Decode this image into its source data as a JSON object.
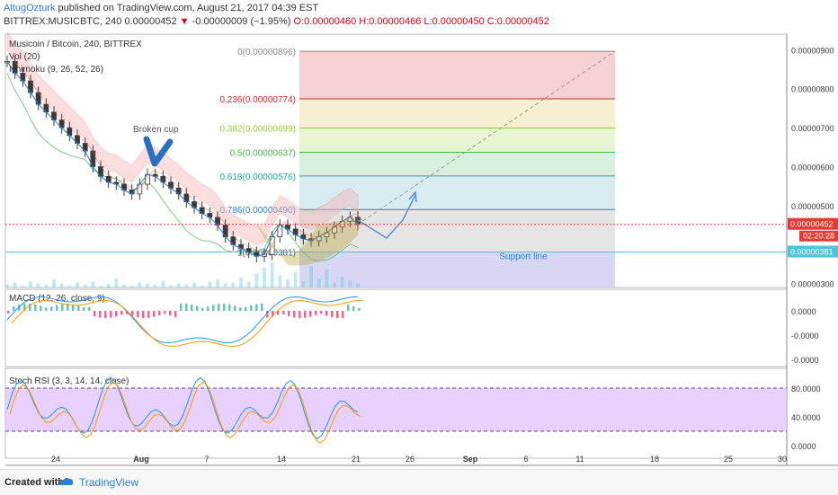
{
  "header": {
    "author": "AltugOzturk",
    "published": "published on TradingView.com, August 21, 2017 04:39 EST",
    "symbol": "BITTREX:MUSICBTC, 240",
    "price": "0.00000452",
    "change": "-0.00000009 (−1.95%)",
    "ohlc": "O:0.00000460 H:0.00000466 L:0.00000450 C:0.00000452"
  },
  "footer": {
    "created_with": "Created with",
    "brand": "TradingView"
  },
  "colors": {
    "up": "#26a69a",
    "down": "#ef5350",
    "candle": "#3a3a3a",
    "blue_line": "#2a7fd0",
    "macd": "#2196f3",
    "signal": "#ff9800",
    "stoch_bg": "#e3c6ff"
  },
  "chart_data": [
    {
      "type": "line",
      "pane": "price",
      "title": "Musicoin / Bitcoin, 240, BITTREX",
      "indicators": [
        "Vol (20)",
        "Ichimoku (9, 26, 52, 26)"
      ],
      "x_ticks": [
        "24",
        "Aug",
        "7",
        "14",
        "21",
        "26",
        "Sep",
        "6",
        "11",
        "18",
        "25",
        "30"
      ],
      "y_ticks": [
        "0.00000900",
        "0.00000800",
        "0.00000700",
        "0.00000600",
        "0.00000500",
        "0.00000300"
      ],
      "last_price_label": "0.00000452",
      "countdown_label": "02:20:28",
      "support_price_label": "0.00000381",
      "ylim": [
        2.9e-06,
        9.4e-06
      ],
      "series": [
        {
          "values": [
            8.7e-06,
            8.4e-06,
            8.2e-06,
            7.9e-06,
            7.6e-06,
            7.4e-06,
            7.2e-06,
            7e-06,
            6.8e-06,
            6.6e-06,
            6.4e-06,
            6e-06,
            5.75e-06,
            5.6e-06,
            5.55e-06,
            5.4e-06,
            5.3e-06,
            5.55e-06,
            5.8e-06,
            5.75e-06,
            5.6e-06,
            5.45e-06,
            5.3e-06,
            5.1e-06,
            4.95e-06,
            4.8e-06,
            4.7e-06,
            4.5e-06,
            4.2e-06,
            4e-06,
            3.9e-06,
            3.8e-06,
            3.7e-06,
            3.75e-06,
            4.2e-06,
            4.5e-06,
            4.4e-06,
            4.25e-06,
            4.15e-06,
            4.1e-06,
            4.2e-06,
            4.3e-06,
            4.45e-06,
            4.6e-06,
            4.7e-06,
            4.52e-06
          ]
        }
      ],
      "fibonacci": [
        {
          "label": "0(0.00000896)",
          "value": 8.96e-06
        },
        {
          "label": "0.236(0.00000774)",
          "value": 7.74e-06
        },
        {
          "label": "0.382(0.00000699)",
          "value": 6.99e-06
        },
        {
          "label": "0.5(0.00000637)",
          "value": 6.37e-06
        },
        {
          "label": "0.618(0.00000576)",
          "value": 5.76e-06
        },
        {
          "label": "0.786(0.00000490)",
          "value": 4.9e-06
        },
        {
          "label": "1(0.00000381)",
          "value": 3.81e-06
        }
      ],
      "annotations": [
        "Broken cup",
        "Support line"
      ]
    },
    {
      "type": "line",
      "pane": "macd",
      "title": "MACD (12, 26, close, 9)",
      "y_ticks": [
        "0.0000",
        "-0.0000",
        "-0.0000"
      ]
    },
    {
      "type": "line",
      "pane": "stoch",
      "title": "Stoch RSI (3, 3, 14, 14, close)",
      "y_ticks": [
        "80.0000",
        "40.0000",
        "0.0000"
      ],
      "bands": [
        80,
        20
      ]
    }
  ]
}
